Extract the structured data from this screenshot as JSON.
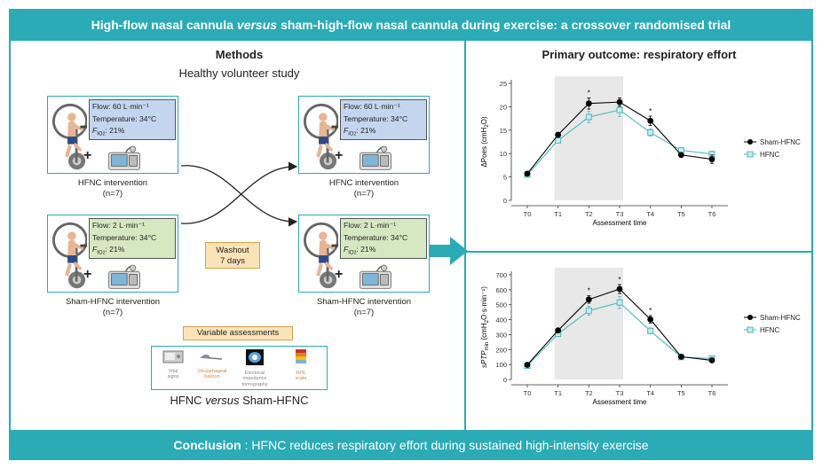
{
  "header": {
    "title_part1": "High-flow nasal cannula",
    "title_italic": "versus",
    "title_part2": "sham-high-flow nasal cannula during exercise: a crossover randomised trial"
  },
  "methods": {
    "title": "Methods",
    "subtitle": "Healthy volunteer study",
    "boxes": [
      {
        "flow": "Flow: 60 L·min⁻¹",
        "temperature": "Temperature: 34°C",
        "fio2": "F",
        "fio2_sub": "IO",
        "fio2_sub2": "2",
        "fio2_val": ": 21%",
        "caption": "HFNC intervention",
        "n": "(n=7)"
      },
      {
        "flow": "Flow: 60 L·min⁻¹",
        "temperature": "Temperature: 34°C",
        "fio2": "F",
        "fio2_sub": "IO",
        "fio2_sub2": "2",
        "fio2_val": ": 21%",
        "caption": "HFNC intervention",
        "n": "(n=7)"
      },
      {
        "flow": "Flow: 2 L·min⁻¹",
        "temperature": "Temperature: 34°C",
        "fio2": "F",
        "fio2_sub": "IO",
        "fio2_sub2": "2",
        "fio2_val": ": 21%",
        "caption": "Sham-HFNC intervention",
        "n": "(n=7)"
      },
      {
        "flow": "Flow: 2 L·min⁻¹",
        "temperature": "Temperature: 34°C",
        "fio2": "F",
        "fio2_sub": "IO",
        "fio2_sub2": "2",
        "fio2_val": ": 21%",
        "caption": "Sham-HFNC intervention",
        "n": "(n=7)"
      }
    ],
    "washout_line1": "Washout",
    "washout_line2": "7 days",
    "variable_assessments": "Variable assessments",
    "assessments": [
      {
        "line1": "Vital",
        "line2": "signs"
      },
      {
        "line1": "Oesophageal",
        "line2": "balloon"
      },
      {
        "line1": "Electrical",
        "line2": "impedance",
        "line3": "tomography"
      },
      {
        "line1": "RPE",
        "line2": "scale"
      }
    ],
    "bottom_part1": "HFNC",
    "bottom_italic": "versus",
    "bottom_part2": "Sham-HFNC"
  },
  "primary": {
    "title": "Primary outcome: respiratory effort"
  },
  "footer": {
    "bold": "Conclusion",
    "text": ": HFNC reduces respiratory effort during sustained high-intensity exercise"
  },
  "colors": {
    "accent": "#2aabb6",
    "hfnc": "#4db8c0",
    "sham": "#000000",
    "shade": "#e8e8e8"
  },
  "chart_data": [
    {
      "type": "line",
      "title": "",
      "xlabel": "Assessment time",
      "ylabel": "ΔPoes (cmH₂O)",
      "ylabel_main": "ΔPoes (cmH",
      "ylabel_sub": "2",
      "ylabel_end": "O)",
      "categories": [
        "T0",
        "T1",
        "T2",
        "T3",
        "T4",
        "T5",
        "T6"
      ],
      "yticks": [
        0,
        5,
        10,
        15,
        20,
        25
      ],
      "ylim": [
        0,
        25
      ],
      "shaded_range": [
        "T1",
        "T3"
      ],
      "significant": [
        2,
        4
      ],
      "series": [
        {
          "name": "Sham-HFNC",
          "values": [
            5.7,
            14.0,
            20.7,
            21.0,
            17.0,
            9.7,
            8.8
          ],
          "errors": [
            0.4,
            0.5,
            1.2,
            0.9,
            1.0,
            0.4,
            0.9
          ]
        },
        {
          "name": "HFNC",
          "values": [
            5.5,
            12.8,
            17.8,
            19.3,
            14.5,
            10.7,
            9.9
          ],
          "errors": [
            0.4,
            0.5,
            1.2,
            1.4,
            0.8,
            0.4,
            0.6
          ]
        }
      ]
    },
    {
      "type": "line",
      "title": "",
      "xlabel": "Assessment time",
      "ylabel": "sPTPmin (cmH₂O·s·min⁻¹)",
      "ylabel_pre": "sPTP",
      "ylabel_min": "min",
      "ylabel_mid": " (cmH",
      "ylabel_sub": "2",
      "ylabel_end": "O·s·min⁻¹)",
      "categories": [
        "T0",
        "T1",
        "T2",
        "T3",
        "T4",
        "T5",
        "T6"
      ],
      "yticks": [
        0,
        100,
        200,
        300,
        400,
        500,
        600,
        700
      ],
      "ylim": [
        0,
        700
      ],
      "shaded_range": [
        "T1",
        "T3"
      ],
      "significant": [
        2,
        3,
        4
      ],
      "series": [
        {
          "name": "Sham-HFNC",
          "values": [
            98,
            328,
            535,
            605,
            402,
            152,
            128
          ],
          "errors": [
            8,
            10,
            25,
            30,
            25,
            8,
            8
          ]
        },
        {
          "name": "HFNC",
          "values": [
            92,
            305,
            460,
            515,
            325,
            150,
            140
          ],
          "errors": [
            8,
            10,
            30,
            40,
            20,
            8,
            8
          ]
        }
      ]
    }
  ]
}
